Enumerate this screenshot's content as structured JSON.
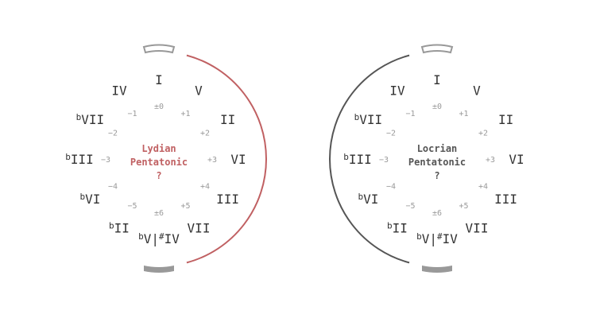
{
  "wheels": [
    {
      "title_lines": [
        "Lydian",
        "Pentatonic",
        "?"
      ],
      "title_color": "#c06062",
      "arc_color": "#c06062",
      "arc_side": "right",
      "degrees": [
        "I",
        "V",
        "II",
        "VI",
        "III",
        "VII",
        "V|#IV",
        "II",
        "VI",
        "III",
        "VII",
        "IV"
      ],
      "flat_marks": [
        "",
        "",
        "",
        "",
        "",
        "",
        "b",
        "b",
        "b",
        "b",
        "b",
        ""
      ],
      "offsets": [
        "±0",
        "+1",
        "+2",
        "+3",
        "+4",
        "+5",
        "±6",
        "−5",
        "−4",
        "−3",
        "−2",
        "−1"
      ]
    },
    {
      "title_lines": [
        "Locrian",
        "Pentatonic",
        "?"
      ],
      "title_color": "#555555",
      "arc_color": "#555555",
      "arc_side": "left",
      "degrees": [
        "I",
        "V",
        "II",
        "VI",
        "III",
        "VII",
        "V|#IV",
        "II",
        "VI",
        "III",
        "VII",
        "IV"
      ],
      "flat_marks": [
        "",
        "",
        "",
        "",
        "",
        "",
        "b",
        "b",
        "b",
        "b",
        "b",
        ""
      ],
      "offsets": [
        "±0",
        "+1",
        "+2",
        "+3",
        "+4",
        "+5",
        "±6",
        "−5",
        "−4",
        "−3",
        "−2",
        "−1"
      ]
    }
  ],
  "colors": {
    "degree_text": "#333333",
    "offset_text": "#9a9a9a",
    "top_marker": "#999999",
    "bottom_marker": "#999999"
  }
}
